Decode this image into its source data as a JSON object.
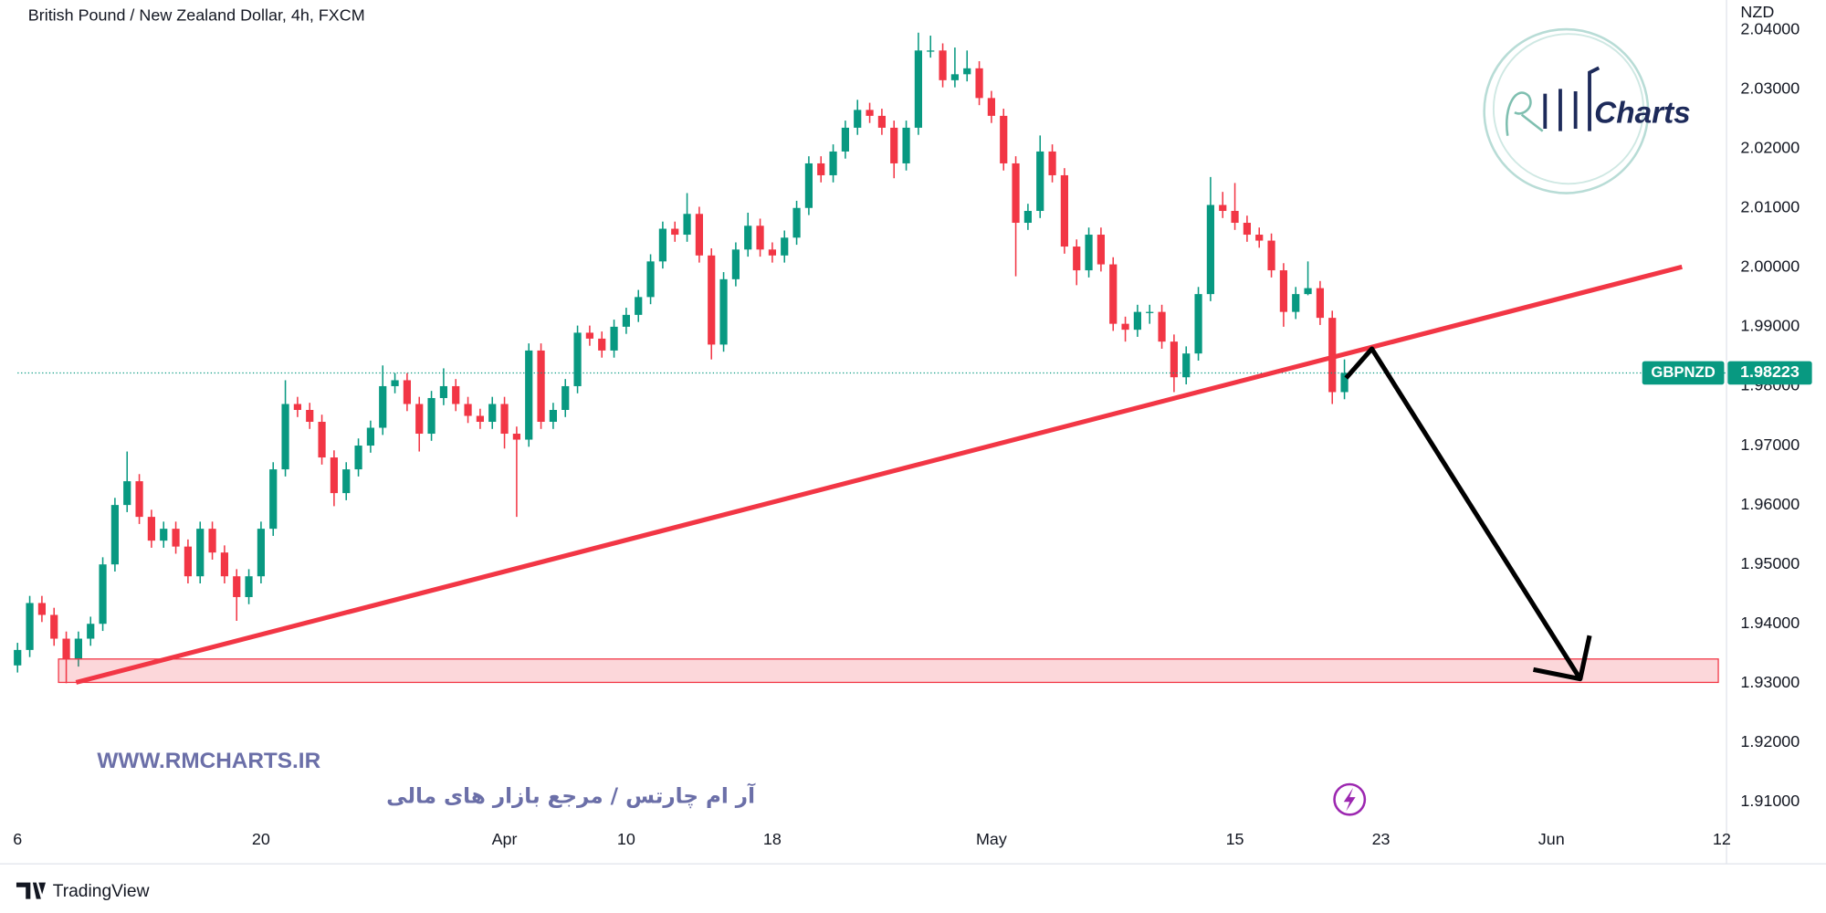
{
  "chart_data": {
    "type": "candlestick",
    "title": "British Pound / New Zealand Dollar, 4h, FXCM",
    "y_unit": "NZD",
    "symbol": "GBPNZD",
    "up_color": "#089981",
    "down_color": "#f23645",
    "categories": [
      "6",
      null,
      null,
      null,
      null,
      null,
      null,
      null,
      null,
      null,
      null,
      null,
      null,
      null,
      null,
      null,
      null,
      null,
      null,
      null,
      "20",
      null,
      null,
      null,
      null,
      null,
      null,
      null,
      null,
      null,
      null,
      null,
      null,
      null,
      null,
      null,
      null,
      null,
      null,
      null,
      "Apr",
      null,
      null,
      null,
      null,
      null,
      null,
      null,
      null,
      null,
      "10",
      null,
      null,
      null,
      null,
      null,
      null,
      null,
      null,
      null,
      null,
      null,
      "18",
      null,
      null,
      null,
      null,
      null,
      null,
      null,
      null,
      null,
      null,
      null,
      null,
      null,
      null,
      null,
      null,
      null,
      "May",
      null,
      null,
      null,
      null,
      null,
      null,
      null,
      null,
      null,
      null,
      null,
      null,
      null,
      null,
      null,
      null,
      null,
      null,
      null,
      "15",
      null,
      null,
      null,
      null,
      null,
      null,
      null,
      null,
      null,
      null,
      null,
      "23",
      null,
      null,
      null,
      null,
      null,
      null,
      null,
      null,
      null,
      null,
      null,
      null,
      null,
      "Jun",
      null,
      null,
      null,
      null,
      null,
      null,
      null,
      null,
      null,
      null,
      null,
      null,
      null,
      "12"
    ],
    "open": [
      1.933,
      1.9356,
      1.9435,
      1.9415,
      1.9375,
      1.934,
      1.9375,
      1.94,
      1.95,
      1.96,
      1.964,
      1.958,
      1.954,
      1.956,
      1.953,
      1.948,
      1.956,
      1.952,
      1.948,
      1.9445,
      1.948,
      1.956,
      1.966,
      1.977,
      1.976,
      1.974,
      1.968,
      1.962,
      1.966,
      1.97,
      1.973,
      1.98,
      1.981,
      1.977,
      1.972,
      1.978,
      1.98,
      1.977,
      1.975,
      1.974,
      1.977,
      1.972,
      1.971,
      1.986,
      1.974,
      1.976,
      1.98,
      1.989,
      1.988,
      1.986,
      1.99,
      1.992,
      1.995,
      2.001,
      2.0065,
      2.0055,
      2.009,
      2.002,
      1.987,
      1.998,
      2.003,
      2.007,
      2.003,
      2.002,
      2.005,
      2.01,
      2.0175,
      2.0155,
      2.0195,
      2.0235,
      2.0265,
      2.0255,
      2.0235,
      2.0175,
      2.0235,
      2.0365,
      2.0365,
      2.0315,
      2.0325,
      2.0335,
      2.0285,
      2.0255,
      2.0175,
      2.0075,
      2.0095,
      2.0195,
      2.0155,
      2.0035,
      1.9995,
      2.0055,
      2.0005,
      1.9905,
      1.9895,
      1.9925,
      1.9925,
      1.9875,
      1.9815,
      1.9855,
      1.9955,
      2.0105,
      2.0095,
      2.0075,
      2.0055,
      2.0045,
      1.9995,
      1.9925,
      1.9955,
      1.9965,
      1.9915,
      1.979,
      null,
      null,
      null,
      null,
      null,
      null,
      null,
      null,
      null,
      null,
      null,
      null,
      null,
      null,
      null,
      null,
      null,
      null,
      null,
      null,
      null,
      null,
      null,
      null,
      null,
      null,
      null,
      null,
      null,
      null,
      null
    ],
    "high": [
      1.9368,
      1.9447,
      1.9447,
      1.9427,
      1.9387,
      1.9387,
      1.9412,
      1.9512,
      1.9612,
      1.969,
      1.9652,
      1.9592,
      1.9572,
      1.9572,
      1.9542,
      1.9572,
      1.9572,
      1.9532,
      1.9492,
      1.9492,
      1.9572,
      1.9672,
      1.981,
      1.9782,
      1.9772,
      1.9752,
      1.9692,
      1.9672,
      1.9712,
      1.9742,
      1.9835,
      1.9822,
      1.9822,
      1.9782,
      1.9792,
      1.983,
      1.9812,
      1.9782,
      1.9762,
      1.9782,
      1.9782,
      1.9732,
      1.9872,
      1.9872,
      1.9772,
      1.9812,
      1.9902,
      1.9902,
      1.9892,
      1.9912,
      1.9932,
      1.9962,
      2.0022,
      2.0077,
      2.0077,
      2.0125,
      2.0102,
      2.0032,
      1.9992,
      2.0042,
      2.0092,
      2.0082,
      2.0042,
      2.0062,
      2.0112,
      2.0187,
      2.0187,
      2.0207,
      2.0247,
      2.0282,
      2.0277,
      2.0267,
      2.0247,
      2.0247,
      2.0395,
      2.039,
      2.0377,
      2.037,
      2.0365,
      2.0347,
      2.0297,
      2.0267,
      2.0187,
      2.0107,
      2.0222,
      2.0207,
      2.0167,
      2.0047,
      2.0067,
      2.0067,
      2.0017,
      1.9917,
      1.9937,
      1.9937,
      1.9937,
      1.9887,
      1.9867,
      1.9967,
      2.0152,
      2.0127,
      2.0142,
      2.0087,
      2.0067,
      2.0057,
      2.0007,
      1.9967,
      2.001,
      1.9977,
      1.9927,
      1.9845,
      null,
      null,
      null,
      null,
      null,
      null,
      null,
      null,
      null,
      null,
      null,
      null,
      null,
      null,
      null,
      null,
      null,
      null,
      null,
      null,
      null,
      null,
      null,
      null,
      null,
      null,
      null,
      null,
      null,
      null,
      null
    ],
    "low": [
      1.9318,
      1.9344,
      1.9403,
      1.9363,
      1.93,
      1.9328,
      1.9363,
      1.9388,
      1.9488,
      1.9588,
      1.9568,
      1.9528,
      1.9528,
      1.9518,
      1.9468,
      1.9468,
      1.9508,
      1.9468,
      1.9405,
      1.9433,
      1.9468,
      1.9548,
      1.9648,
      1.9748,
      1.9728,
      1.9668,
      1.9598,
      1.9608,
      1.9648,
      1.9688,
      1.9718,
      1.9788,
      1.9758,
      1.969,
      1.9708,
      1.9768,
      1.9758,
      1.9738,
      1.9728,
      1.9728,
      1.9695,
      1.958,
      1.9698,
      1.9728,
      1.9728,
      1.9748,
      1.9788,
      1.9868,
      1.9848,
      1.9848,
      1.9888,
      1.9908,
      1.9938,
      1.9998,
      2.0043,
      2.0043,
      2.0008,
      1.9845,
      1.9858,
      1.9968,
      2.0018,
      2.0018,
      2.0008,
      2.0008,
      2.0038,
      2.0088,
      2.0143,
      2.0143,
      2.0183,
      2.0223,
      2.0243,
      2.0223,
      2.015,
      2.0163,
      2.0223,
      2.0353,
      2.0303,
      2.0303,
      2.0313,
      2.0273,
      2.0243,
      2.0163,
      1.9985,
      2.0063,
      2.0083,
      2.0143,
      2.0023,
      1.997,
      1.9983,
      1.9993,
      1.9893,
      1.9875,
      1.9883,
      1.9905,
      1.9863,
      1.979,
      1.9803,
      1.9843,
      1.9943,
      2.0083,
      2.0063,
      2.0043,
      2.0033,
      1.9983,
      1.99,
      1.9913,
      1.9953,
      1.9903,
      1.977,
      1.9778,
      null,
      null,
      null,
      null,
      null,
      null,
      null,
      null,
      null,
      null,
      null,
      null,
      null,
      null,
      null,
      null,
      null,
      null,
      null,
      null,
      null,
      null,
      null,
      null,
      null,
      null,
      null,
      null,
      null,
      null,
      null
    ],
    "close": [
      1.9356,
      1.9435,
      1.9415,
      1.9375,
      1.934,
      1.9375,
      1.94,
      1.95,
      1.96,
      1.964,
      1.958,
      1.954,
      1.956,
      1.953,
      1.948,
      1.956,
      1.952,
      1.948,
      1.9445,
      1.948,
      1.956,
      1.966,
      1.977,
      1.976,
      1.974,
      1.968,
      1.962,
      1.966,
      1.97,
      1.973,
      1.98,
      1.981,
      1.977,
      1.972,
      1.978,
      1.98,
      1.977,
      1.975,
      1.974,
      1.977,
      1.972,
      1.971,
      1.986,
      1.974,
      1.976,
      1.98,
      1.989,
      1.988,
      1.986,
      1.99,
      1.992,
      1.995,
      2.001,
      2.0065,
      2.0055,
      2.009,
      2.002,
      1.987,
      1.998,
      2.003,
      2.007,
      2.003,
      2.002,
      2.005,
      2.01,
      2.0175,
      2.0155,
      2.0195,
      2.0235,
      2.0265,
      2.0255,
      2.0235,
      2.0175,
      2.0235,
      2.0365,
      2.0365,
      2.0315,
      2.0325,
      2.0335,
      2.0285,
      2.0255,
      2.0175,
      2.0075,
      2.0095,
      2.0195,
      2.0155,
      2.0035,
      1.9995,
      2.0055,
      2.0005,
      1.9905,
      1.9895,
      1.9925,
      1.9925,
      1.9875,
      1.9815,
      1.9855,
      1.9955,
      2.0105,
      2.0095,
      2.0075,
      2.0055,
      2.0045,
      1.9995,
      1.9925,
      1.9955,
      1.9965,
      1.9915,
      1.979,
      1.98223,
      null,
      null,
      null,
      null,
      null,
      null,
      null,
      null,
      null,
      null,
      null,
      null,
      null,
      null,
      null,
      null,
      null,
      null,
      null,
      null,
      null,
      null,
      null,
      null,
      null,
      null,
      null,
      null,
      null,
      null,
      null
    ],
    "ylim": [
      1.9061,
      2.045
    ],
    "yticks": [
      {
        "value": 1.91,
        "label": "1.91000"
      },
      {
        "value": 1.92,
        "label": "1.92000"
      },
      {
        "value": 1.93,
        "label": "1.93000"
      },
      {
        "value": 1.94,
        "label": "1.94000"
      },
      {
        "value": 1.95,
        "label": "1.95000"
      },
      {
        "value": 1.96,
        "label": "1.96000"
      },
      {
        "value": 1.97,
        "label": "1.97000"
      },
      {
        "value": 1.98,
        "label": "1.98000"
      },
      {
        "value": 1.99,
        "label": "1.99000"
      },
      {
        "value": 2.0,
        "label": "2.00000"
      },
      {
        "value": 2.01,
        "label": "2.01000"
      },
      {
        "value": 2.02,
        "label": "2.02000"
      },
      {
        "value": 2.03,
        "label": "2.03000"
      },
      {
        "value": 2.04,
        "label": "2.04000"
      }
    ]
  },
  "watermark": {
    "url": "WWW.RMCHARTS.IR",
    "tagline": "آر ام چارتس / مرجع بازار های مالی",
    "logo_text": "Charts"
  },
  "footer": {
    "brand": "TradingView"
  }
}
